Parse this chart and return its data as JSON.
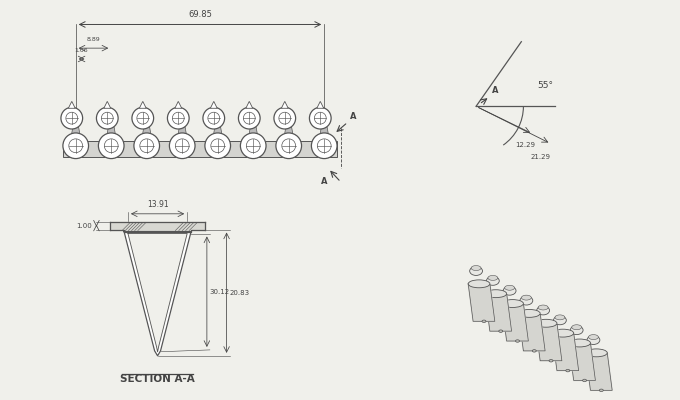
{
  "bg_color": "#f0f0eb",
  "line_color": "#555555",
  "dim_color": "#444444",
  "n_tubes": 8,
  "dim_69_85": "69.85",
  "dim_8_89": "8.89",
  "dim_1_06": "1.06",
  "dim_angle": "55°",
  "dim_12_29": "12.29",
  "dim_21_29": "21.29",
  "section_label": "SECTION A-A",
  "dim_13_91": "13.91",
  "dim_1_00": "1.00",
  "dim_30_12": "30.12",
  "dim_20_83": "20.83"
}
